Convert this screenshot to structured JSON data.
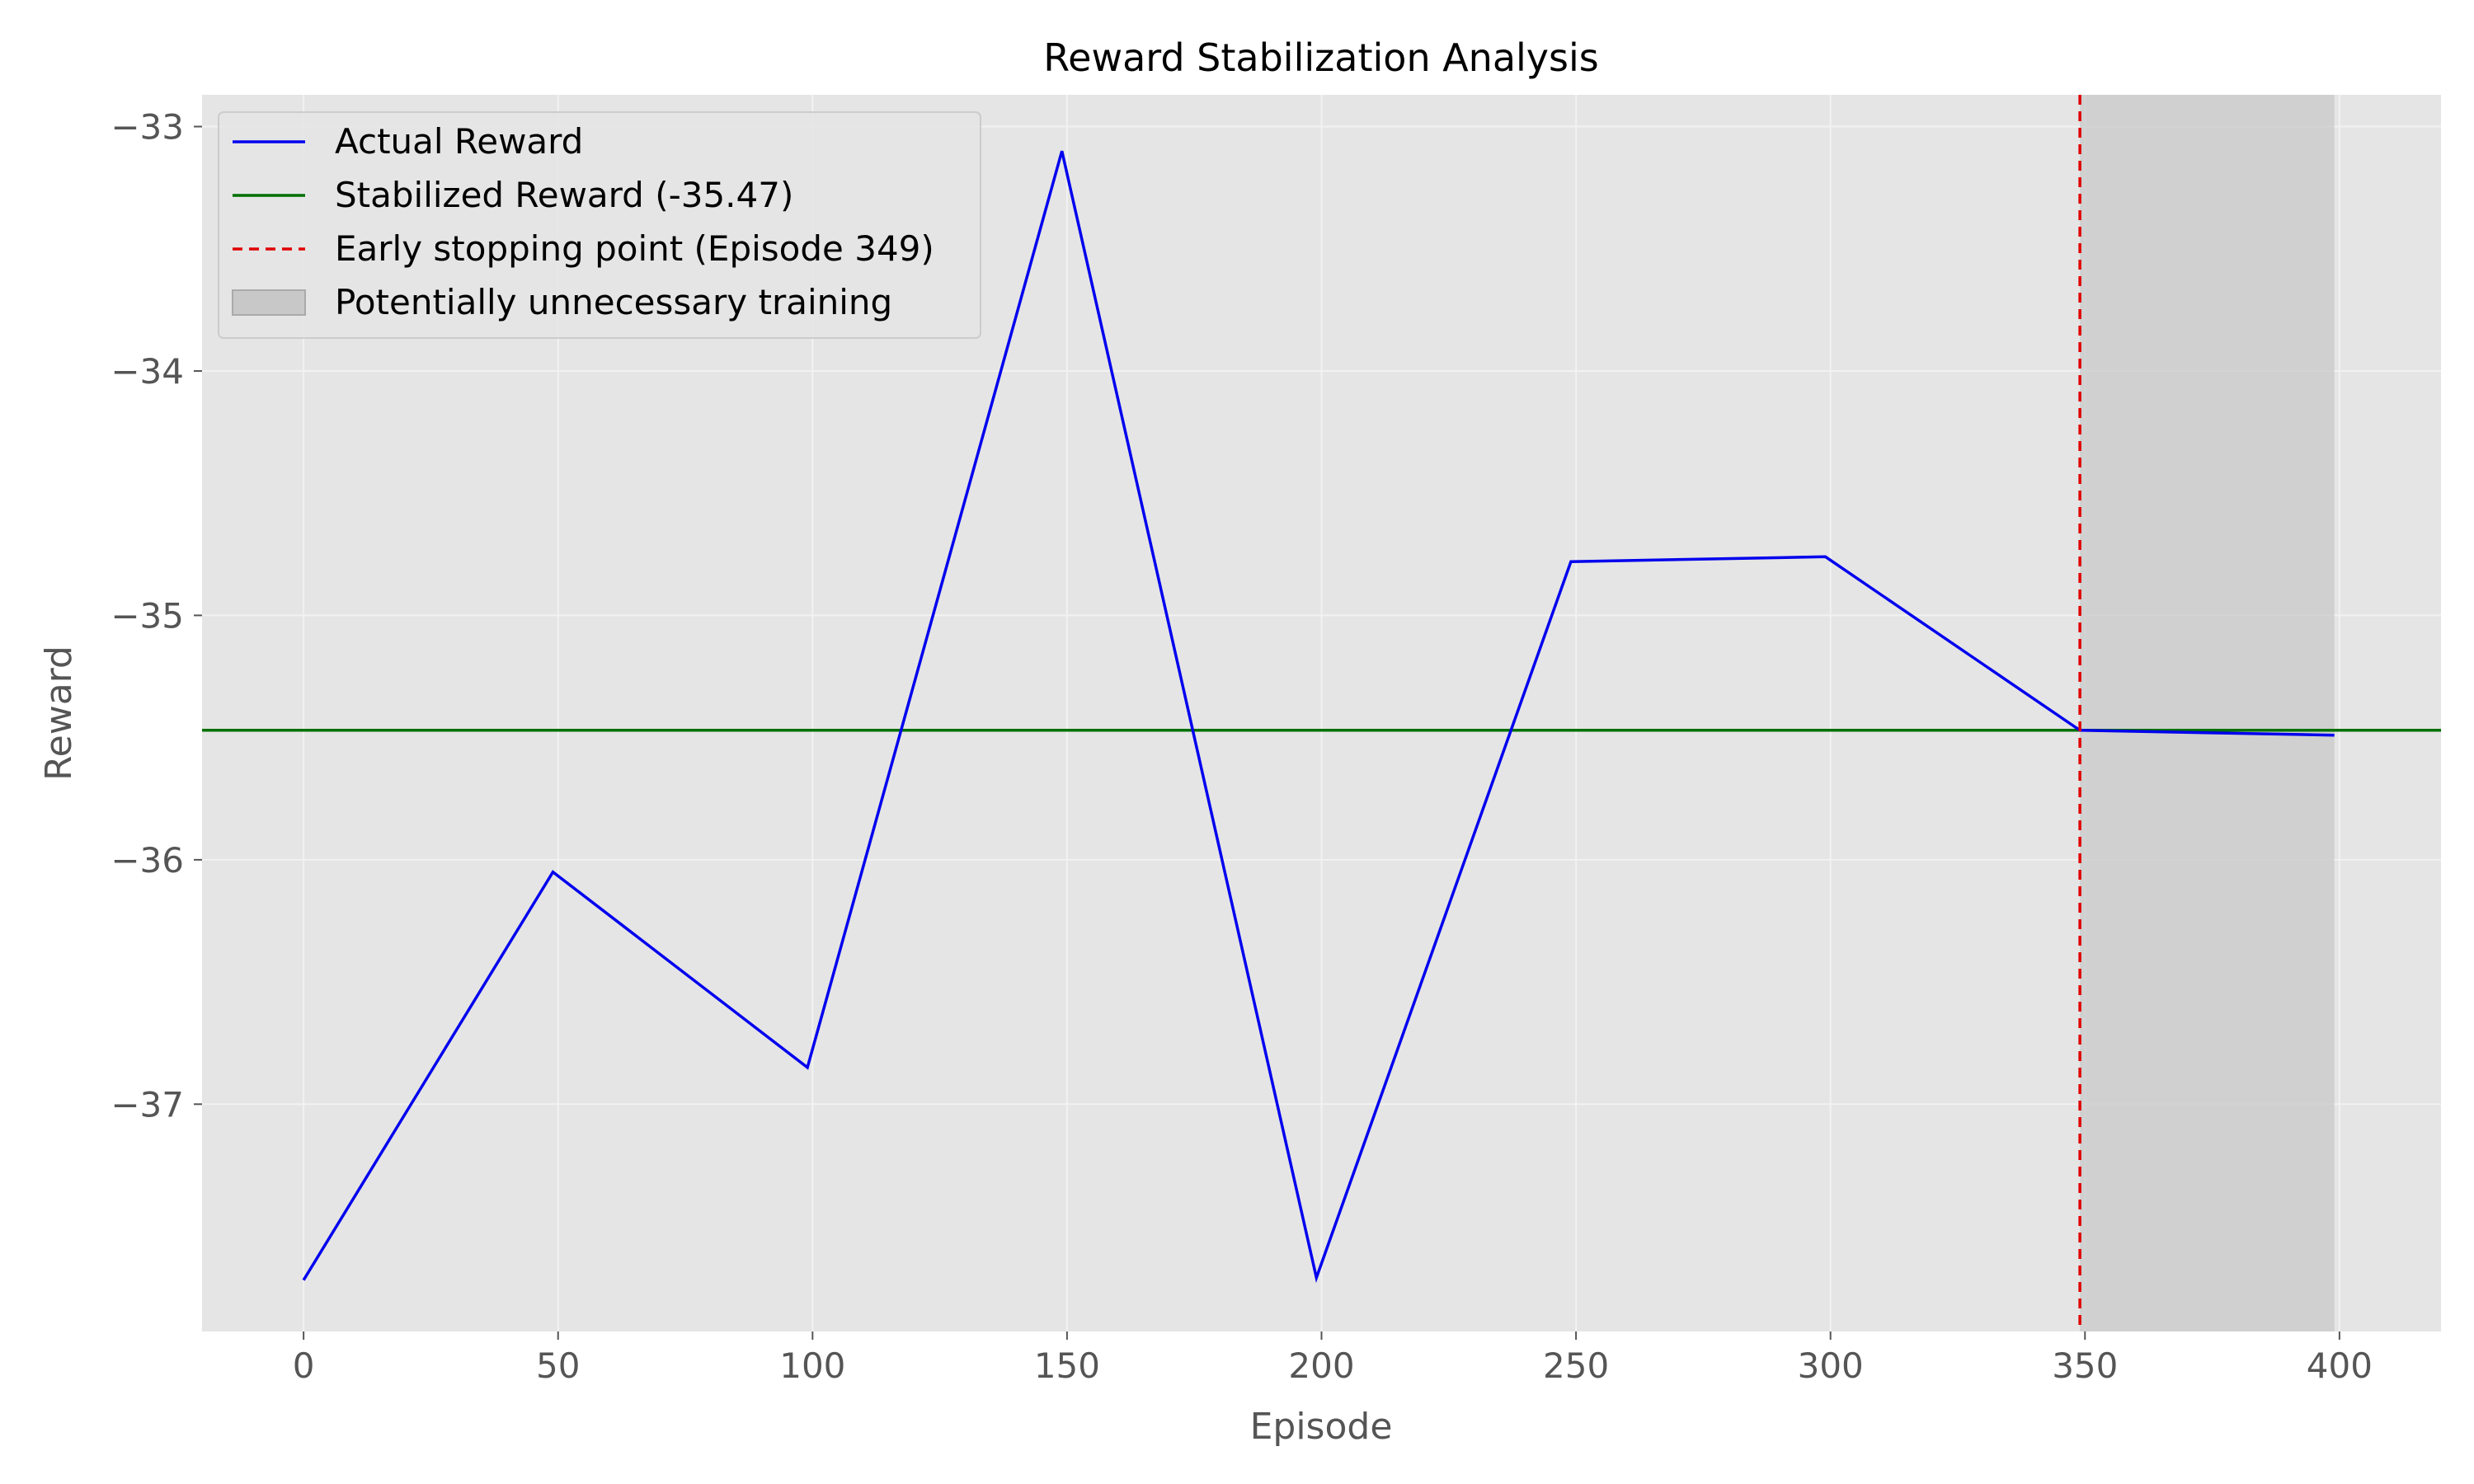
{
  "chart_data": {
    "type": "line",
    "title": "Reward Stabilization Analysis",
    "xlabel": "Episode",
    "ylabel": "Reward",
    "xlim": [
      -19.95,
      419.95
    ],
    "ylim": [
      -37.93,
      -32.87
    ],
    "x_ticks": [
      0,
      50,
      100,
      150,
      200,
      250,
      300,
      350,
      400
    ],
    "x_tick_labels": [
      "0",
      "50",
      "100",
      "150",
      "200",
      "250",
      "300",
      "350",
      "400"
    ],
    "y_ticks": [
      -33,
      -34,
      -35,
      -36,
      -37
    ],
    "y_tick_labels": [
      "−33",
      "−34",
      "−35",
      "−36",
      "−37"
    ],
    "grid": true,
    "legend_position": "upper-left",
    "series": [
      {
        "name": "Actual Reward",
        "color": "#0000ee",
        "x": [
          0,
          49,
          99,
          149,
          199,
          249,
          299,
          349,
          399
        ],
        "y": [
          -37.72,
          -36.05,
          -36.85,
          -33.1,
          -37.71,
          -34.78,
          -34.76,
          -35.47,
          -35.49
        ]
      }
    ],
    "hline": {
      "name": "Stabilized Reward (-35.47)",
      "y": -35.47,
      "color": "#007000"
    },
    "vline": {
      "name": "Early stopping point (Episode 349)",
      "x": 349,
      "color": "#e00000",
      "style": "dashed"
    },
    "shaded_region": {
      "name": "Potentially unnecessary training",
      "x_start": 349,
      "x_end": 399,
      "color": "#c8c8c8"
    }
  }
}
